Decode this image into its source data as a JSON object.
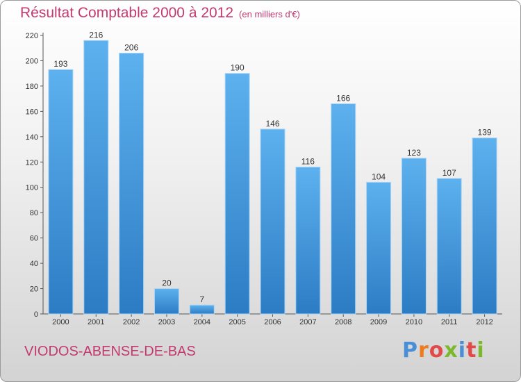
{
  "header": {
    "title": "Résultat Comptable 2000 à 2012",
    "subtitle": "(en milliers d'€)"
  },
  "footer": {
    "commune": "VIODOS-ABENSE-DE-BAS",
    "logo": "Proxiti",
    "logo_colors": [
      "#4a8fd6",
      "#ef7b1f",
      "#e24a4a",
      "#7ab82c",
      "#4a8fd6",
      "#e24a4a",
      "#7ab82c"
    ]
  },
  "colors": {
    "bar": "#3d8fd6",
    "title": "#c23a6e"
  },
  "chart_data": {
    "type": "bar",
    "categories": [
      "2000",
      "2001",
      "2002",
      "2003",
      "2004",
      "2005",
      "2006",
      "2007",
      "2008",
      "2009",
      "2010",
      "2011",
      "2012"
    ],
    "values": [
      193,
      216,
      206,
      20,
      7,
      190,
      146,
      116,
      166,
      104,
      123,
      107,
      139
    ],
    "yticks": [
      0,
      20,
      40,
      60,
      80,
      100,
      120,
      140,
      160,
      180,
      200,
      220
    ],
    "ylim": [
      0,
      220
    ],
    "grid": false
  }
}
